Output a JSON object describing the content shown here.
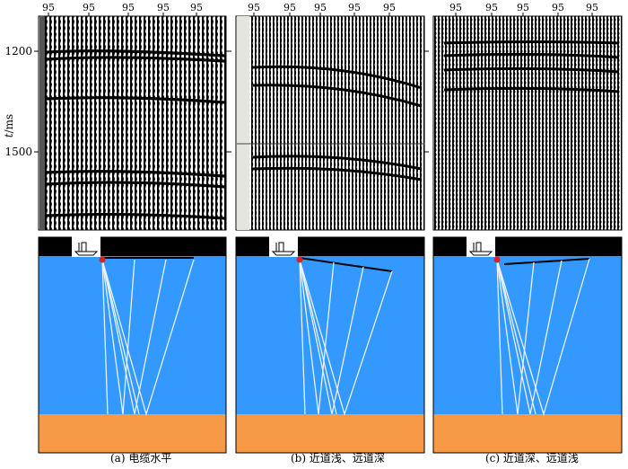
{
  "figure": {
    "y_axis": {
      "var": "t",
      "unit": "/ms",
      "ticks": [
        "1200",
        "1500"
      ],
      "tick_values": [
        1200,
        1500
      ]
    },
    "trace_label": "95",
    "panels": [
      {
        "id": "a",
        "caption": "(a) 电缆水平"
      },
      {
        "id": "b",
        "caption": "(b) 近道浅、远道深"
      },
      {
        "id": "c",
        "caption": "(c) 近道深、远道浅"
      }
    ],
    "colors": {
      "water": "#3399ff",
      "seabed": "#f79a46",
      "air": "#000000",
      "source": "#e02020",
      "ray": "#e8f2ff",
      "cable": "#000000"
    }
  }
}
